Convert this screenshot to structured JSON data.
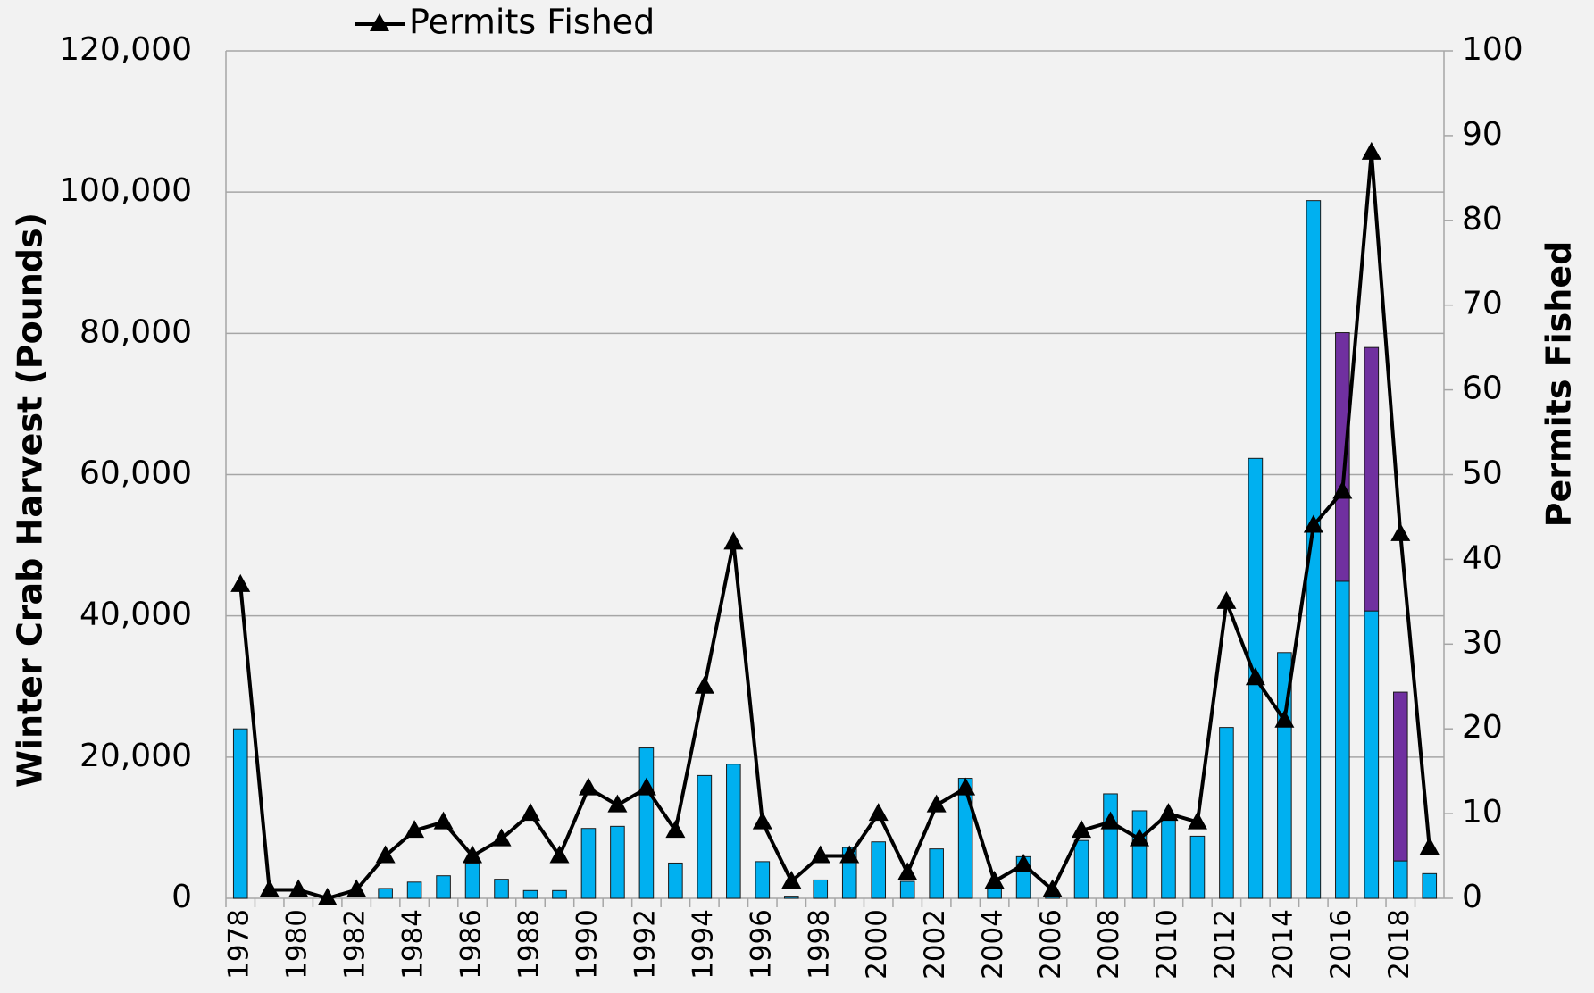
{
  "chart_data": {
    "type": "bar",
    "categories": [
      "1978",
      null,
      "1980",
      null,
      "1982",
      null,
      "1984",
      null,
      "1986",
      null,
      "1988",
      null,
      "1990",
      null,
      "1992",
      null,
      "1994",
      null,
      "1996",
      null,
      "1998",
      null,
      "2000",
      null,
      "2002",
      null,
      "2004",
      null,
      "2006",
      null,
      "2008",
      null,
      "2010",
      null,
      "2012",
      null,
      "2014",
      null,
      "2016",
      null,
      "2018",
      null
    ],
    "stacked": true,
    "series": [
      {
        "color": "#00b0f0",
        "values": [
          24000,
          0,
          0,
          0,
          0,
          1400,
          2300,
          3200,
          5000,
          2700,
          1100,
          1100,
          9900,
          10200,
          21300,
          5000,
          17400,
          19000,
          5200,
          300,
          2600,
          7200,
          8000,
          2400,
          7000,
          17000,
          1400,
          5900,
          300,
          8200,
          14800,
          12400,
          11200,
          8800,
          24200,
          62300,
          34800,
          98800,
          44900,
          40700,
          5300,
          3500
        ]
      },
      {
        "color": "#7030a0",
        "values": [
          0,
          0,
          0,
          0,
          0,
          0,
          0,
          0,
          0,
          0,
          0,
          0,
          0,
          0,
          0,
          0,
          0,
          0,
          0,
          0,
          0,
          0,
          0,
          0,
          0,
          0,
          0,
          0,
          0,
          0,
          0,
          0,
          0,
          0,
          0,
          0,
          0,
          0,
          35200,
          37300,
          23900,
          0
        ]
      },
      {
        "name": "Permits Fished",
        "type": "line",
        "axis": "y2",
        "color": "#000000",
        "values": [
          37,
          1,
          1,
          0,
          1,
          5,
          8,
          9,
          5,
          7,
          10,
          5,
          13,
          11,
          13,
          8,
          25,
          42,
          9,
          2,
          5,
          5,
          10,
          3,
          11,
          13,
          2,
          4,
          1,
          8,
          9,
          7,
          10,
          9,
          35,
          26,
          21,
          44,
          48,
          88,
          43,
          6
        ]
      }
    ],
    "y_label": "Winter Crab Harvest (Pounds)",
    "y2_label": "Permits Fished",
    "ylim": [
      0,
      120000
    ],
    "yticks": [
      0,
      {
        "value": 20000,
        "label": "20,000"
      },
      {
        "value": 40000,
        "label": "40,000"
      },
      {
        "value": 60000,
        "label": "60,000"
      },
      {
        "value": 80000,
        "label": "80,000"
      },
      {
        "value": 100000,
        "label": "100,000"
      },
      {
        "value": 120000,
        "label": "120,000"
      }
    ],
    "y2lim": [
      0,
      100
    ],
    "y2ticks": [
      0,
      10,
      20,
      30,
      40,
      50,
      60,
      70,
      80,
      90,
      100
    ],
    "grid": true,
    "legend": "top"
  }
}
